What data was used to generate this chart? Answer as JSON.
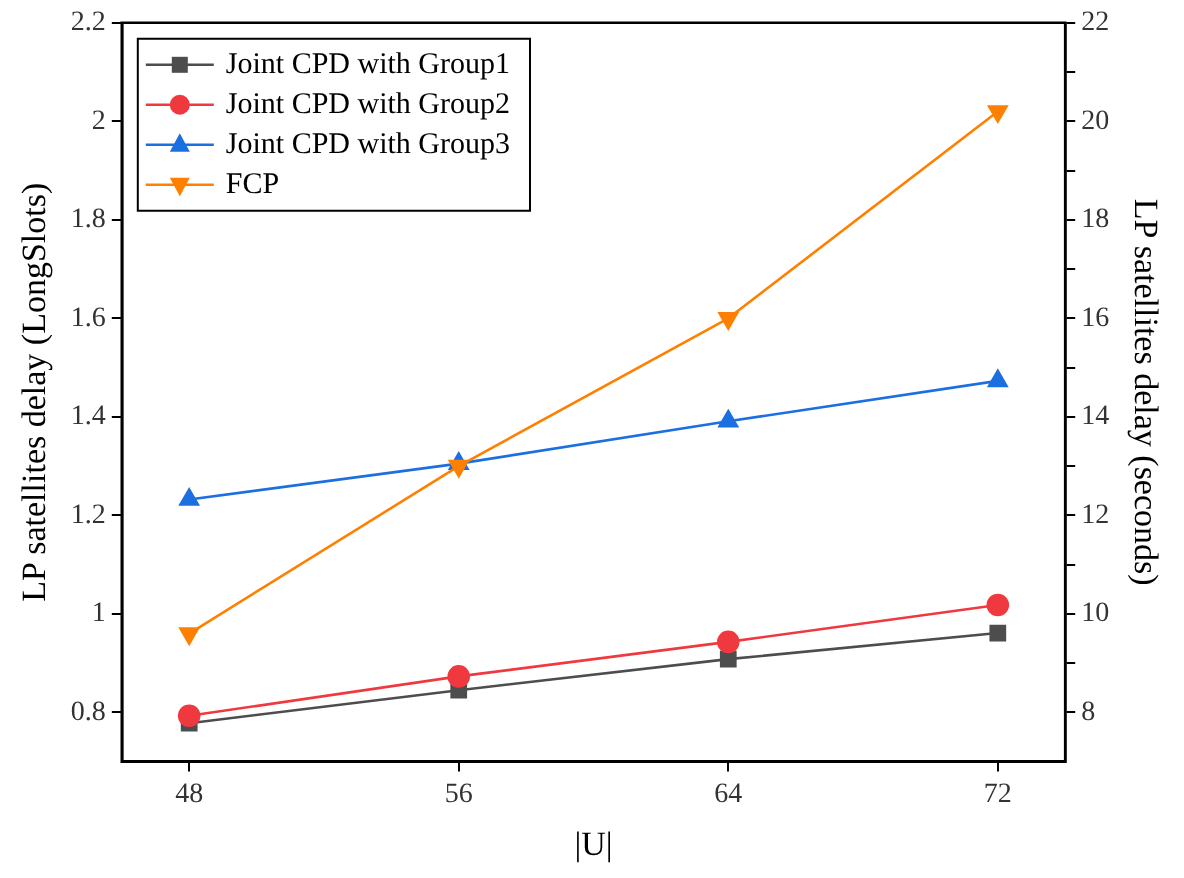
{
  "chart_data": {
    "type": "line",
    "xlabel": "|U|",
    "ylabel": "LP satellites delay (LongSlots)",
    "y2label": "LP satellites delay (seconds)",
    "x": [
      48,
      56,
      64,
      72
    ],
    "xlim": [
      46,
      74
    ],
    "xticks": [
      48,
      56,
      64,
      72
    ],
    "ylim": [
      0.7,
      2.2
    ],
    "yticks": [
      0.8,
      1.0,
      1.2,
      1.4,
      1.6,
      1.8,
      2.0,
      2.2
    ],
    "y2lim": [
      7,
      22
    ],
    "y2ticks": [
      8,
      {
        "value": 9,
        "label": null
      },
      10,
      {
        "value": 11,
        "label": null
      },
      12,
      {
        "value": 13,
        "label": null
      },
      14,
      {
        "value": 15,
        "label": null
      },
      16,
      {
        "value": 17,
        "label": null
      },
      18,
      {
        "value": 19,
        "label": null
      },
      20,
      {
        "value": 21,
        "label": null
      },
      22
    ],
    "grid": false,
    "legend": "top left",
    "line_style": "solid",
    "series": [
      {
        "name": "Joint CPD with Group1",
        "color": "#4d4d4d",
        "marker": "square",
        "values": [
          0.778,
          0.845,
          0.908,
          0.961
        ]
      },
      {
        "name": "Joint CPD with Group2",
        "color": "#f0393f",
        "marker": "circle",
        "values": [
          0.793,
          0.873,
          0.943,
          1.018
        ]
      },
      {
        "name": "Joint CPD with Group3",
        "color": "#1b6fe0",
        "marker": "triangle",
        "values": [
          1.232,
          1.305,
          1.391,
          1.473
        ]
      },
      {
        "name": "FCP",
        "color": "#ff8000",
        "marker": "triangle-down",
        "axis": "y2",
        "values": [
          9.6,
          13.0,
          16.0,
          20.2
        ]
      }
    ]
  }
}
